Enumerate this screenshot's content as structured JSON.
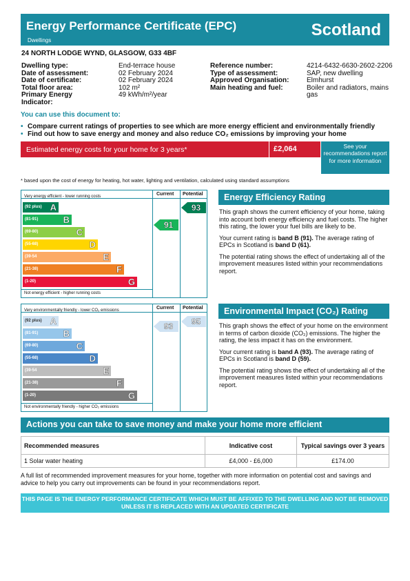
{
  "header": {
    "title": "Energy Performance Certificate (EPC)",
    "subtitle": "Dwellings",
    "country": "Scotland"
  },
  "address": "24 NORTH LODGE WYND, GLASGOW, G33 4BF",
  "details_left": [
    {
      "label": "Dwelling type:",
      "value": "End-terrace house"
    },
    {
      "label": "Date of assessment:",
      "value": "02 February 2024"
    },
    {
      "label": "Date of certificate:",
      "value": "02 February 2024"
    },
    {
      "label": "Total floor area:",
      "value": "102 m²"
    },
    {
      "label": "Primary Energy Indicator:",
      "value": "49 kWh/m²/year"
    }
  ],
  "details_right": [
    {
      "label": "Reference number:",
      "value": "4214-6432-6630-2602-2206"
    },
    {
      "label": "Type of assessment:",
      "value": "SAP, new dwelling"
    },
    {
      "label": "Approved Organisation:",
      "value": "Elmhurst"
    },
    {
      "label": "Main heating and fuel:",
      "value": "Boiler and radiators, mains gas"
    }
  ],
  "use_doc_title": "You can use this document to:",
  "bullets": [
    "Compare current ratings of properties to see which are more energy efficient and environmentally friendly",
    "Find out how to save energy and money and also reduce CO₂ emissions by improving your home"
  ],
  "cost": {
    "label": "Estimated energy costs for your home for 3 years*",
    "value": "£2,064",
    "see_more": "See your recommendations report for more information"
  },
  "footnote": "* based upon the cost of energy for heating, hot water, lighting and ventilation, calculated using standard assumptions",
  "colors": {
    "teal": "#1a8ba0",
    "red": "#d11e32",
    "light_teal": "#3ec4d6"
  },
  "energy_chart": {
    "top_label": "Very energy efficient - lower running costs",
    "bottom_label": "Not energy efficient - higher running costs",
    "current_header": "Current",
    "potential_header": "Potential",
    "bands": [
      {
        "range": "(92 plus)",
        "letter": "A",
        "color": "#008054"
      },
      {
        "range": "(81-91)",
        "letter": "B",
        "color": "#19b459"
      },
      {
        "range": "(69-80)",
        "letter": "C",
        "color": "#8dce46"
      },
      {
        "range": "(55-68)",
        "letter": "D",
        "color": "#ffd500"
      },
      {
        "range": "(39-54",
        "letter": "E",
        "color": "#fcaa65"
      },
      {
        "range": "(21-38)",
        "letter": "F",
        "color": "#ef8023"
      },
      {
        "range": "(1-20)",
        "letter": "G",
        "color": "#e9153b"
      }
    ],
    "current": {
      "value": "91",
      "band_index": 1,
      "color": "#19b459"
    },
    "potential": {
      "value": "93",
      "band_index": 0,
      "color": "#008054"
    }
  },
  "env_chart": {
    "top_label": "Very environmentally friendly - lower CO₂ emissions",
    "bottom_label": "Not environmentally friendly - higher CO₂ emissions",
    "current_header": "Current",
    "potential_header": "Potential",
    "bands": [
      {
        "range": "(92 plus)",
        "letter": "A",
        "color": "#cfe2f3"
      },
      {
        "range": "(81-91)",
        "letter": "B",
        "color": "#96c6ea"
      },
      {
        "range": "(69-80)",
        "letter": "C",
        "color": "#6ea8dc"
      },
      {
        "range": "(55-68)",
        "letter": "D",
        "color": "#4a87c8"
      },
      {
        "range": "(39-54",
        "letter": "E",
        "color": "#bdbdbd"
      },
      {
        "range": "(21-38)",
        "letter": "F",
        "color": "#999999"
      },
      {
        "range": "(1-20)",
        "letter": "G",
        "color": "#7a7a7a"
      }
    ],
    "current": {
      "value": "93",
      "band_index": 0,
      "color": "#cfe2f3"
    },
    "potential": {
      "value": "95",
      "band_index": 0,
      "color": "#cfe2f3"
    }
  },
  "eer": {
    "title": "Energy Efficiency Rating",
    "p1": "This graph shows the current efficiency of your home, taking into account both energy efficiency and fuel costs. The higher this rating, the lower your fuel bills are likely to be.",
    "p2a": "Your current rating is ",
    "p2b": "band B (91).",
    "p2c": " The average rating of EPCs in Scotland is ",
    "p2d": "band D (61).",
    "p3": "The potential rating shows the effect of undertaking all of the improvement measures listed within your recommendations report."
  },
  "eir": {
    "title": "Environmental Impact (CO₂) Rating",
    "p1": "This graph shows the effect of your home on the environment in terms of carbon dioxide (CO₂) emissions. The higher the rating, the less impact it has on the environment.",
    "p2a": "Your current rating is ",
    "p2b": "band A (93).",
    "p2c": " The average rating of EPCs in Scotland is ",
    "p2d": "band D (59).",
    "p3": "The potential rating shows the effect of undertaking all of the improvement measures listed within your recommendations report."
  },
  "actions": {
    "title": "Actions you can take to save money and make your home more efficient",
    "headers": [
      "Recommended measures",
      "Indicative cost",
      "Typical savings over 3 years"
    ],
    "rows": [
      [
        "1 Solar water heating",
        "£4,000 - £6,000",
        "£174.00"
      ]
    ]
  },
  "full_list": "A full list of recommended improvement measures for your home, together with more information on potential cost and savings and advice to help you carry out improvements can be found in your recommendations report.",
  "footer": "THIS PAGE IS THE ENERGY PERFORMANCE CERTIFICATE WHICH MUST BE AFFIXED TO THE DWELLING AND NOT BE REMOVED UNLESS IT IS REPLACED WITH AN UPDATED CERTIFICATE"
}
